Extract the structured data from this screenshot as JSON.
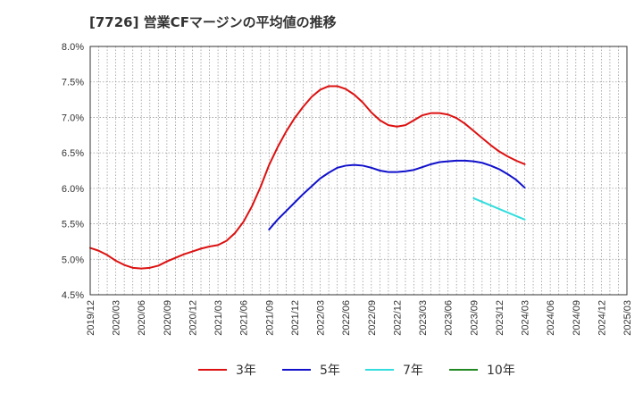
{
  "chart_data": {
    "type": "line",
    "title": "[7726]  営業CFマージンの平均値の推移",
    "xlabel": "",
    "ylabel": "",
    "ylim": [
      4.5,
      8.0
    ],
    "y_ticks": [
      "4.5%",
      "5.0%",
      "5.5%",
      "6.0%",
      "6.5%",
      "7.0%",
      "7.5%",
      "8.0%"
    ],
    "x_tick_labels": [
      "2019/12",
      "2020/03",
      "2020/06",
      "2020/09",
      "2020/12",
      "2021/03",
      "2021/06",
      "2021/09",
      "2021/12",
      "2022/03",
      "2022/06",
      "2022/09",
      "2022/12",
      "2023/03",
      "2023/06",
      "2023/09",
      "2023/12",
      "2024/03",
      "2024/06",
      "2024/09",
      "2024/12",
      "2025/03"
    ],
    "grid": true,
    "legend_position": "bottom",
    "series": [
      {
        "name": "3年",
        "color": "#dd1111",
        "points": [
          [
            "2019/12",
            5.16
          ],
          [
            "2020/01",
            5.12
          ],
          [
            "2020/02",
            5.06
          ],
          [
            "2020/03",
            4.98
          ],
          [
            "2020/04",
            4.92
          ],
          [
            "2020/05",
            4.88
          ],
          [
            "2020/06",
            4.87
          ],
          [
            "2020/07",
            4.88
          ],
          [
            "2020/08",
            4.91
          ],
          [
            "2020/09",
            4.97
          ],
          [
            "2020/10",
            5.02
          ],
          [
            "2020/11",
            5.07
          ],
          [
            "2020/12",
            5.11
          ],
          [
            "2021/01",
            5.15
          ],
          [
            "2021/02",
            5.18
          ],
          [
            "2021/03",
            5.2
          ],
          [
            "2021/04",
            5.26
          ],
          [
            "2021/05",
            5.37
          ],
          [
            "2021/06",
            5.53
          ],
          [
            "2021/07",
            5.75
          ],
          [
            "2021/08",
            6.02
          ],
          [
            "2021/09",
            6.33
          ],
          [
            "2021/10",
            6.58
          ],
          [
            "2021/11",
            6.8
          ],
          [
            "2021/12",
            6.99
          ],
          [
            "2022/01",
            7.15
          ],
          [
            "2022/02",
            7.29
          ],
          [
            "2022/03",
            7.39
          ],
          [
            "2022/04",
            7.44
          ],
          [
            "2022/05",
            7.44
          ],
          [
            "2022/06",
            7.4
          ],
          [
            "2022/07",
            7.32
          ],
          [
            "2022/08",
            7.21
          ],
          [
            "2022/09",
            7.07
          ],
          [
            "2022/10",
            6.96
          ],
          [
            "2022/11",
            6.89
          ],
          [
            "2022/12",
            6.87
          ],
          [
            "2023/01",
            6.89
          ],
          [
            "2023/02",
            6.96
          ],
          [
            "2023/03",
            7.03
          ],
          [
            "2023/04",
            7.06
          ],
          [
            "2023/05",
            7.06
          ],
          [
            "2023/06",
            7.04
          ],
          [
            "2023/07",
            6.99
          ],
          [
            "2023/08",
            6.91
          ],
          [
            "2023/09",
            6.81
          ],
          [
            "2023/10",
            6.71
          ],
          [
            "2023/11",
            6.61
          ],
          [
            "2023/12",
            6.52
          ],
          [
            "2024/01",
            6.45
          ],
          [
            "2024/02",
            6.39
          ],
          [
            "2024/03",
            6.34
          ]
        ]
      },
      {
        "name": "5年",
        "color": "#1111cc",
        "points": [
          [
            "2021/09",
            5.42
          ],
          [
            "2021/10",
            5.56
          ],
          [
            "2021/11",
            5.68
          ],
          [
            "2021/12",
            5.8
          ],
          [
            "2022/01",
            5.92
          ],
          [
            "2022/02",
            6.03
          ],
          [
            "2022/03",
            6.14
          ],
          [
            "2022/04",
            6.22
          ],
          [
            "2022/05",
            6.29
          ],
          [
            "2022/06",
            6.32
          ],
          [
            "2022/07",
            6.33
          ],
          [
            "2022/08",
            6.32
          ],
          [
            "2022/09",
            6.29
          ],
          [
            "2022/10",
            6.25
          ],
          [
            "2022/11",
            6.23
          ],
          [
            "2022/12",
            6.23
          ],
          [
            "2023/01",
            6.24
          ],
          [
            "2023/02",
            6.26
          ],
          [
            "2023/03",
            6.3
          ],
          [
            "2023/04",
            6.34
          ],
          [
            "2023/05",
            6.37
          ],
          [
            "2023/06",
            6.38
          ],
          [
            "2023/07",
            6.39
          ],
          [
            "2023/08",
            6.39
          ],
          [
            "2023/09",
            6.38
          ],
          [
            "2023/10",
            6.36
          ],
          [
            "2023/11",
            6.32
          ],
          [
            "2023/12",
            6.27
          ],
          [
            "2024/01",
            6.2
          ],
          [
            "2024/02",
            6.12
          ],
          [
            "2024/03",
            6.01
          ]
        ]
      },
      {
        "name": "7年",
        "color": "#33dddd",
        "points": [
          [
            "2023/09",
            5.86
          ],
          [
            "2023/12",
            5.71
          ],
          [
            "2024/03",
            5.56
          ]
        ]
      },
      {
        "name": "10年",
        "color": "#228822",
        "points": []
      }
    ]
  }
}
